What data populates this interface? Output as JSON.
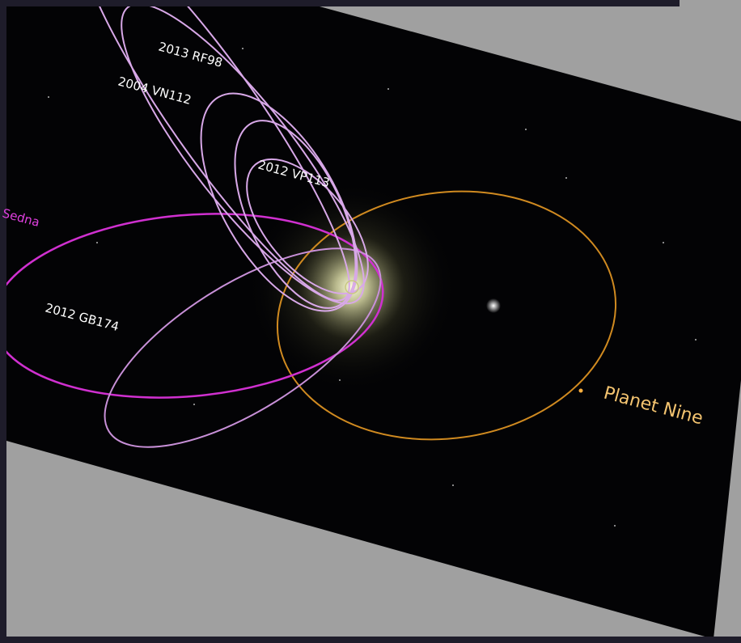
{
  "labels": [
    "2013 RF98",
    "2004 VN112",
    "2012 VP113",
    "Sedna",
    "2012 GB174",
    "Planet Nine"
  ]
}
